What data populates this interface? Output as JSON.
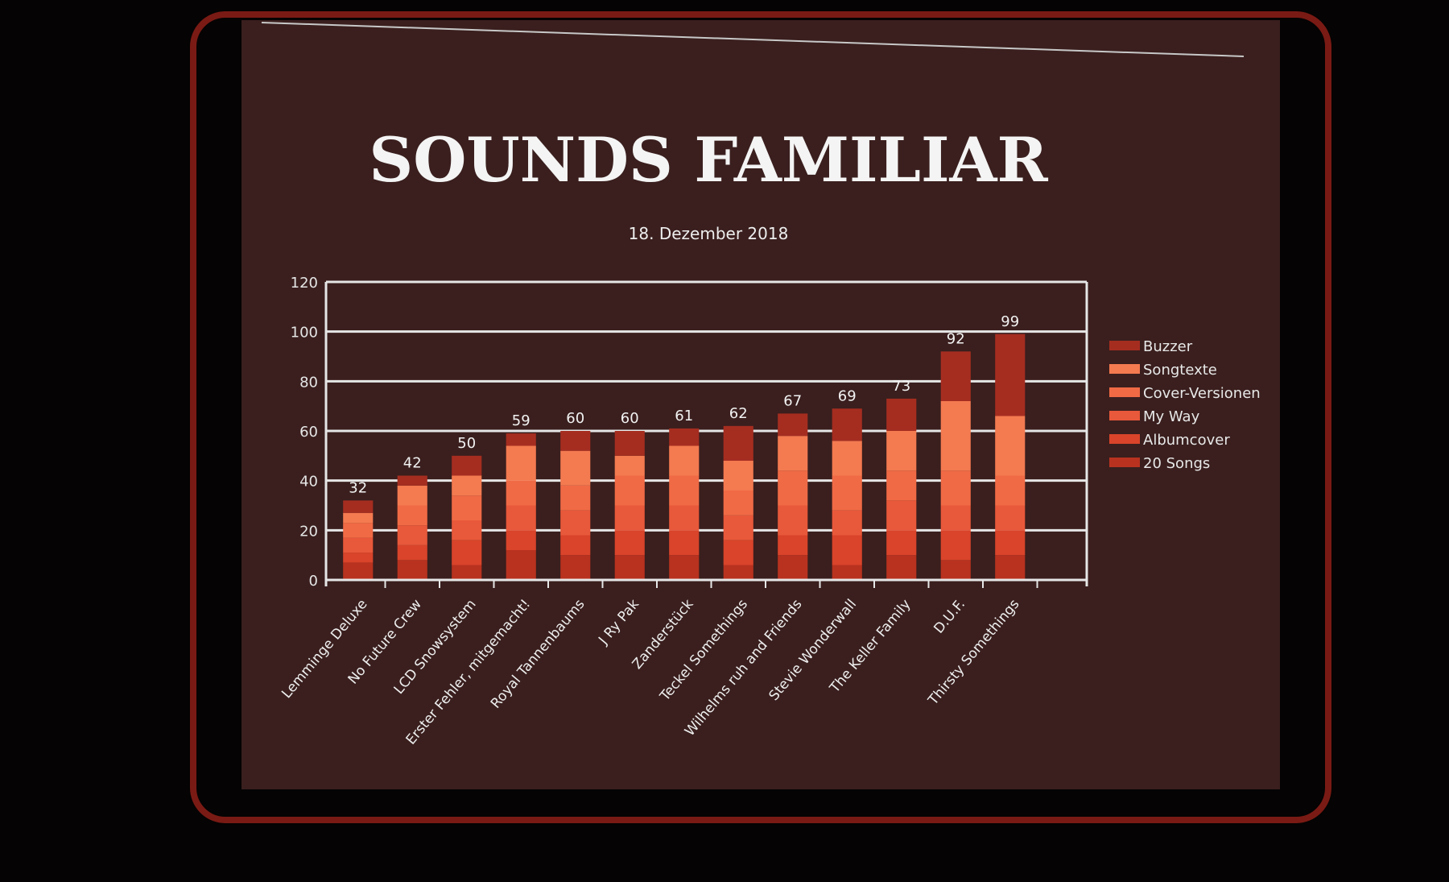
{
  "chart_data": {
    "type": "bar",
    "stacked": true,
    "title": "SOUNDS FAMILIAR",
    "subtitle": "18. Dezember 2018",
    "xlabel": "",
    "ylabel": "",
    "ylim": [
      0,
      120
    ],
    "yticks": [
      0,
      20,
      40,
      60,
      80,
      100,
      120
    ],
    "grid": true,
    "legend_position": "right",
    "categories": [
      "Lemminge Deluxe",
      "No Future Crew",
      "LCD Snowsystem",
      "Erster Fehler, mitgemacht!",
      "Royal Tannenbaums",
      "J Ry Pak",
      "Zanderstück",
      "Teckel Somethings",
      "Wilhelms ruh and Friends",
      "Stevie Wonderwall",
      "The Keller Family",
      "D.U.F.",
      "Thirsty Somethings"
    ],
    "totals": [
      32,
      42,
      50,
      59,
      60,
      60,
      61,
      62,
      67,
      69,
      73,
      92,
      99
    ],
    "series": [
      {
        "name": "20 Songs",
        "color": "#b8321f",
        "values": [
          7,
          8,
          6,
          12,
          10,
          10,
          10,
          6,
          10,
          6,
          10,
          8,
          10
        ]
      },
      {
        "name": "Albumcover",
        "color": "#d9442a",
        "values": [
          4,
          6,
          10,
          8,
          8,
          10,
          10,
          10,
          8,
          12,
          10,
          12,
          10
        ]
      },
      {
        "name": "My Way",
        "color": "#e8583a",
        "values": [
          6,
          8,
          8,
          10,
          10,
          10,
          10,
          10,
          12,
          10,
          12,
          10,
          10
        ]
      },
      {
        "name": "Cover-Versionen",
        "color": "#f06a45",
        "values": [
          6,
          8,
          10,
          10,
          10,
          12,
          12,
          10,
          14,
          14,
          12,
          14,
          12
        ]
      },
      {
        "name": "Songtexte",
        "color": "#f47a50",
        "values": [
          4,
          8,
          8,
          14,
          14,
          8,
          12,
          12,
          14,
          14,
          16,
          28,
          24
        ]
      },
      {
        "name": "Buzzer",
        "color": "#a52d20",
        "values": [
          5,
          4,
          8,
          5,
          8,
          10,
          7,
          14,
          9,
          13,
          13,
          20,
          33
        ]
      }
    ]
  }
}
